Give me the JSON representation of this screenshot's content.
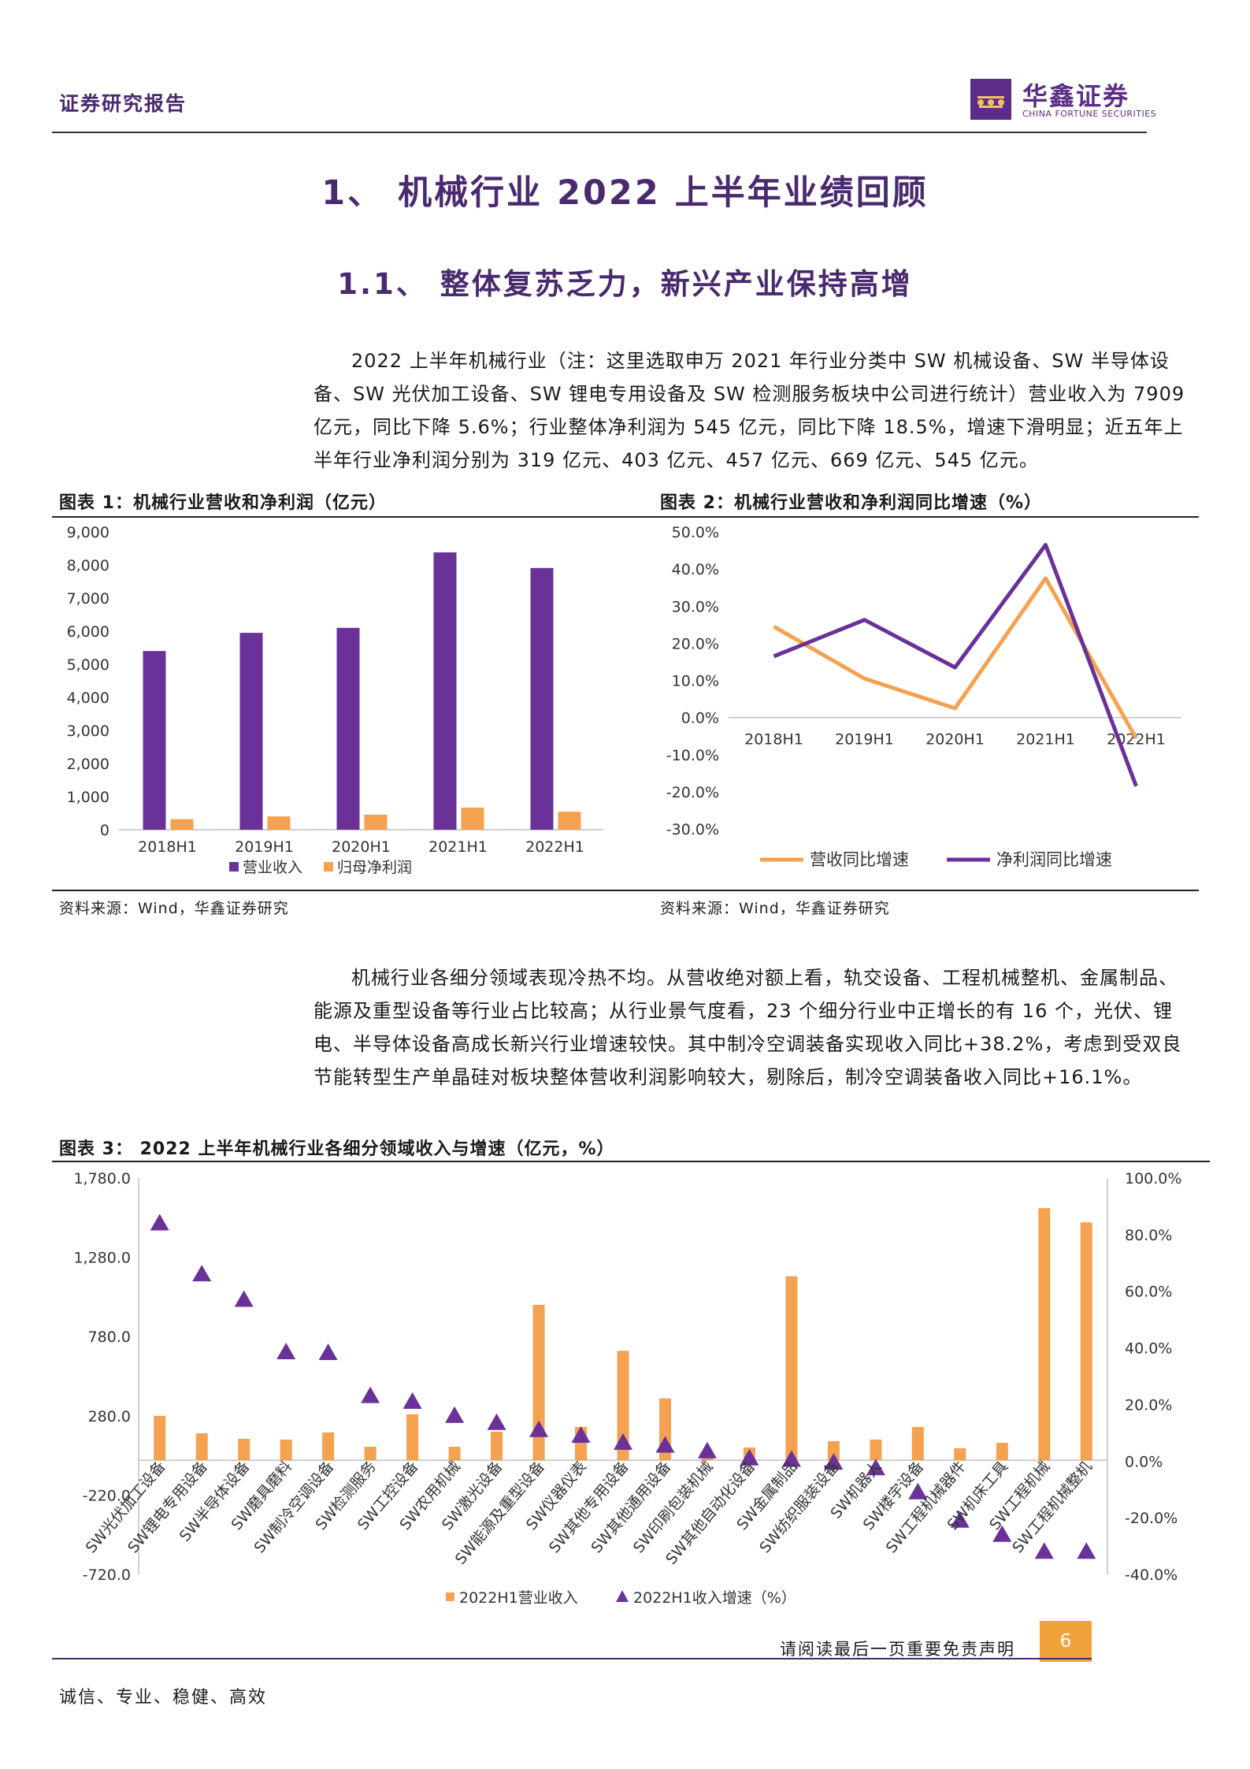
{
  "header": {
    "title": "证券研究报告",
    "logo_cn": "华鑫证券",
    "logo_en": "CHINA FORTUNE SECURITIES"
  },
  "headings": {
    "h1": "1、 机械行业 2022 上半年业绩回顾",
    "h2": "1.1、 整体复苏乏力，新兴产业保持高增"
  },
  "paragraphs": {
    "p1": "2022 上半年机械行业（注：这里选取申万 2021 年行业分类中 SW 机械设备、SW 半导体设备、SW 光伏加工设备、SW 锂电专用设备及 SW 检测服务板块中公司进行统计）营业收入为 7909 亿元，同比下降 5.6%；行业整体净利润为 545 亿元，同比下降 18.5%，增速下滑明显；近五年上半年行业净利润分别为 319 亿元、403 亿元、457 亿元、669 亿元、545 亿元。",
    "p2": "机械行业各细分领域表现冷热不均。从营收绝对额上看，轨交设备、工程机械整机、金属制品、能源及重型设备等行业占比较高；从行业景气度看，23 个细分行业中正增长的有 16 个，光伏、锂电、半导体设备高成长新兴行业增速较快。其中制冷空调装备实现收入同比+38.2%，考虑到受双良节能转型生产单晶硅对板块整体营收利润影响较大，剔除后，制冷空调装备收入同比+16.1%。"
  },
  "figures": {
    "fig1_title": "图表 1：机械行业营收和净利润（亿元）",
    "fig2_title": "图表 2：机械行业营收和净利润同比增速（%）",
    "fig3_title": "图表 3： 2022 上半年机械行业各细分领域收入与增速（亿元，%）",
    "source": "资料来源：Wind，华鑫证券研究"
  },
  "footer": {
    "disclaimer": "请阅读最后一页重要免责声明",
    "page": "6",
    "motto": "诚信、专业、稳健、高效"
  },
  "colors": {
    "purple": "#6a3199",
    "orange": "#f4a150",
    "brand": "#5b2d86"
  },
  "chart_data": [
    {
      "type": "bar",
      "categories": [
        "2018H1",
        "2019H1",
        "2020H1",
        "2021H1",
        "2022H1"
      ],
      "series": [
        {
          "name": "营业收入",
          "values": [
            5400,
            5950,
            6100,
            8380,
            7909
          ],
          "color": "#6a3199"
        },
        {
          "name": "归母净利润",
          "values": [
            319,
            403,
            457,
            669,
            545
          ],
          "color": "#f4a150"
        }
      ],
      "ylim": [
        0,
        9000
      ],
      "yticks": [
        "0",
        "1,000",
        "2,000",
        "3,000",
        "4,000",
        "5,000",
        "6,000",
        "7,000",
        "8,000",
        "9,000"
      ],
      "legend": "bottom-left"
    },
    {
      "type": "line",
      "categories": [
        "2018H1",
        "2019H1",
        "2020H1",
        "2021H1",
        "2022H1"
      ],
      "series": [
        {
          "name": "营收同比增速",
          "values": [
            24.5,
            10.5,
            2.5,
            37.5,
            -5.6
          ],
          "color": "#f4a150"
        },
        {
          "name": "净利润同比增速",
          "values": [
            16.5,
            26.3,
            13.5,
            46.5,
            -18.5
          ],
          "color": "#6a3199"
        }
      ],
      "ylim": [
        -30,
        50
      ],
      "yticks": [
        "-30.0%",
        "-20.0%",
        "-10.0%",
        "0.0%",
        "10.0%",
        "20.0%",
        "30.0%",
        "40.0%",
        "50.0%"
      ],
      "legend": "bottom"
    },
    {
      "type": "bar",
      "categories": [
        "SW光伏加工设备",
        "SW锂电专用设备",
        "SW半导体设备",
        "SW磨具磨料",
        "SW制冷空调设备",
        "SW检测服务",
        "SW工控设备",
        "SW农用机械",
        "SW激光设备",
        "SW能源及重型设备",
        "SW仪器仪表",
        "SW其他专用设备",
        "SW其他通用设备",
        "SW印刷包装机械",
        "SW其他自动化设备",
        "SW金属制品",
        "SW纺织服装设备",
        "SW机器人",
        "SW楼宇设备",
        "SW工程机械器件",
        "SW机床工具",
        "SW工程机械",
        "SW工程机械整机"
      ],
      "series": [
        {
          "name": "2022H1营业收入",
          "values": [
            280,
            170,
            135,
            130,
            175,
            85,
            290,
            85,
            180,
            980,
            210,
            690,
            390,
            25,
            80,
            1160,
            120,
            130,
            210,
            75,
            110,
            1590,
            1500
          ],
          "color": "#f4a150"
        },
        {
          "name": "2022H1收入增速（%）",
          "values": [
            84,
            66,
            57,
            38.5,
            38.2,
            23,
            21,
            16,
            13.5,
            11,
            9,
            6.5,
            5.5,
            3.5,
            1,
            0.5,
            -0.5,
            -2.5,
            -11,
            -21,
            -26,
            -32,
            -32
          ],
          "color": "#6a3199"
        }
      ],
      "ylim": [
        -720,
        1780
      ],
      "yticks": [
        "-720.0",
        "-220.0",
        "280.0",
        "780.0",
        "1,280.0",
        "1,780.0"
      ],
      "y2lim": [
        -40,
        100
      ],
      "y2ticks": [
        "-40.0%",
        "-20.0%",
        "0.0%",
        "20.0%",
        "40.0%",
        "60.0%",
        "80.0%",
        "100.0%"
      ],
      "legend": "bottom"
    }
  ]
}
